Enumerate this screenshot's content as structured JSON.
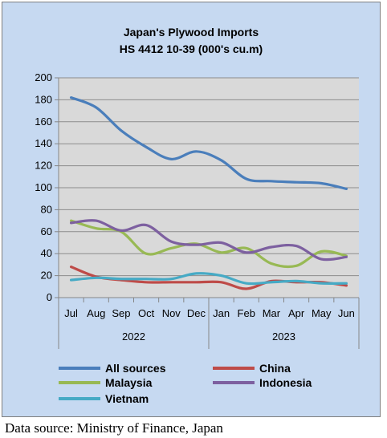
{
  "chart_data": {
    "type": "line",
    "title": "Japan's Plywood Imports",
    "subtitle": "HS 4412 10-39  (000's cu.m)",
    "categories": [
      "Jul",
      "Aug",
      "Sep",
      "Oct",
      "Nov",
      "Dec",
      "Jan",
      "Feb",
      "Mar",
      "Apr",
      "May",
      "Jun"
    ],
    "year_groups": [
      {
        "label": "2022",
        "from": 0,
        "to": 5
      },
      {
        "label": "2023",
        "from": 6,
        "to": 11
      }
    ],
    "ylim": [
      0,
      200
    ],
    "yticks": [
      0,
      20,
      40,
      60,
      80,
      100,
      120,
      140,
      160,
      180,
      200
    ],
    "grid": true,
    "legend_position": "bottom",
    "series": [
      {
        "name": "All sources",
        "color": "#4a7ebb",
        "values": [
          182,
          173,
          152,
          137,
          126,
          133,
          125,
          108,
          106,
          105,
          104,
          99
        ]
      },
      {
        "name": "China",
        "color": "#be4b48",
        "values": [
          28,
          19,
          16,
          14,
          14,
          14,
          14,
          8,
          15,
          14,
          14,
          11
        ]
      },
      {
        "name": "Malaysia",
        "color": "#98b954",
        "values": [
          70,
          63,
          60,
          40,
          45,
          49,
          41,
          45,
          31,
          29,
          42,
          38
        ]
      },
      {
        "name": "Indonesia",
        "color": "#7d60a0",
        "values": [
          68,
          70,
          61,
          66,
          51,
          48,
          50,
          41,
          46,
          47,
          35,
          37
        ]
      },
      {
        "name": "Vietnam",
        "color": "#46aac5",
        "values": [
          16,
          18,
          17,
          17,
          17,
          22,
          20,
          13,
          14,
          15,
          13,
          13
        ]
      }
    ]
  },
  "source_note": "Data source: Ministry of Finance, Japan"
}
